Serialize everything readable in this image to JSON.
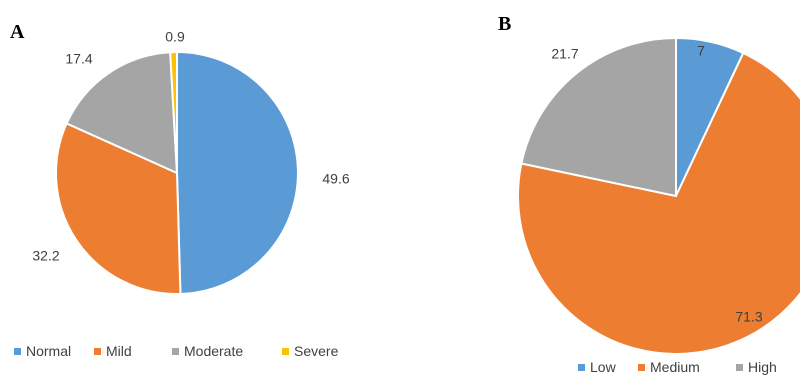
{
  "chart_data": [
    {
      "type": "pie",
      "panel_label": "A",
      "categories": [
        "Normal",
        "Mild",
        "Moderate",
        "Severe"
      ],
      "values": [
        49.6,
        32.2,
        17.4,
        0.9
      ],
      "colors": [
        "#5b9bd5",
        "#ed7d31",
        "#a5a5a5",
        "#ffc000"
      ],
      "data_labels": [
        "49.6",
        "32.2",
        "17.4",
        "0.9"
      ],
      "legend_position": "bottom"
    },
    {
      "type": "pie",
      "panel_label": "B",
      "categories": [
        "Low",
        "Medium",
        "High"
      ],
      "values": [
        7,
        71.3,
        21.7
      ],
      "colors": [
        "#5b9bd5",
        "#ed7d31",
        "#a5a5a5"
      ],
      "data_labels": [
        "7",
        "71.3",
        "21.7"
      ],
      "legend_position": "bottom"
    }
  ]
}
